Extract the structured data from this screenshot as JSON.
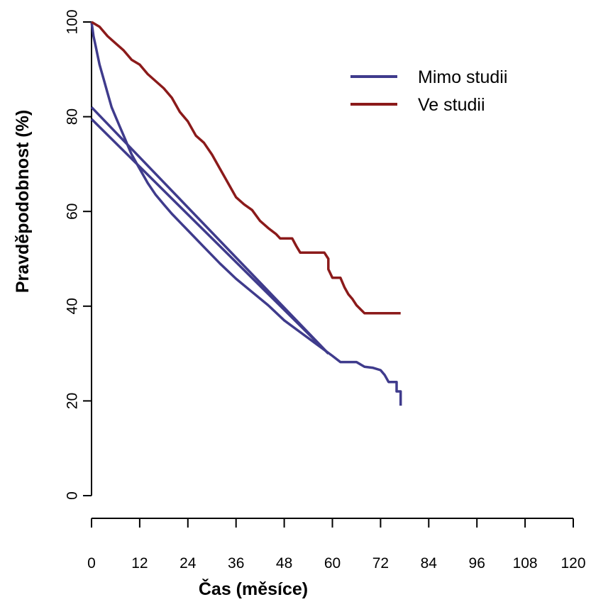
{
  "chart_data": {
    "type": "line",
    "xlabel": "Čas (měsíce)",
    "ylabel": "Pravděpodobnost (%)",
    "xlim": [
      0,
      120
    ],
    "ylim": [
      0,
      100
    ],
    "x_ticks": [
      0,
      12,
      24,
      36,
      48,
      60,
      72,
      84,
      96,
      108,
      120
    ],
    "y_ticks": [
      0,
      20,
      40,
      60,
      80,
      100
    ],
    "grid": false,
    "legend_position": "top-right",
    "series": [
      {
        "name": "Mimo studii",
        "color": "#3f3b8c",
        "points": [
          [
            0,
            100
          ],
          [
            0.5,
            97
          ],
          [
            1,
            95
          ],
          [
            1.5,
            93
          ],
          [
            2,
            91
          ],
          [
            3,
            88
          ],
          [
            4,
            85
          ],
          [
            5,
            82
          ],
          [
            6,
            80
          ],
          [
            7,
            78
          ],
          [
            8,
            76
          ],
          [
            9,
            74
          ],
          [
            10,
            72
          ],
          [
            12,
            69
          ],
          [
            14,
            66
          ],
          [
            16,
            63.5
          ],
          [
            18,
            61.5
          ],
          [
            20,
            59.5
          ],
          [
            24,
            56
          ],
          [
            28,
            52.5
          ],
          [
            32,
            49
          ],
          [
            36,
            45.8
          ],
          [
            40,
            43
          ],
          [
            44,
            40.2
          ],
          [
            48,
            37
          ],
          [
            52,
            34.5
          ],
          [
            56,
            32
          ],
          [
            60,
            29.5
          ],
          [
            62,
            28.2
          ],
          [
            66,
            28.2
          ],
          [
            68,
            27.2
          ],
          [
            70,
            27
          ],
          [
            72,
            26.5
          ],
          [
            73,
            25.5
          ],
          [
            74,
            24
          ],
          [
            76,
            24
          ],
          [
            76,
            22
          ],
          [
            77,
            22
          ],
          [
            77,
            19
          ]
        ]
      },
      {
        "name": "Ve studii",
        "color": "#8b1a1a",
        "points": [
          [
            0,
            100
          ],
          [
            2,
            99
          ],
          [
            4,
            97
          ],
          [
            6,
            95.5
          ],
          [
            8,
            94
          ],
          [
            10,
            92
          ],
          [
            12,
            91
          ],
          [
            14,
            89
          ],
          [
            16,
            87.5
          ],
          [
            18,
            86
          ],
          [
            20,
            84
          ],
          [
            22,
            81
          ],
          [
            24,
            79
          ],
          [
            26,
            76
          ],
          [
            28,
            74.5
          ],
          [
            30,
            72
          ],
          [
            32,
            69
          ],
          [
            34,
            66
          ],
          [
            36,
            63
          ],
          [
            38,
            61.5
          ],
          [
            40,
            60.3
          ],
          [
            42,
            58
          ],
          [
            44,
            56.5
          ],
          [
            46,
            55.2
          ],
          [
            47,
            54.3
          ],
          [
            50,
            54.3
          ],
          [
            51,
            52.7
          ],
          [
            52,
            51.3
          ],
          [
            58,
            51.3
          ],
          [
            59,
            50
          ],
          [
            59,
            47.8
          ],
          [
            60,
            46
          ],
          [
            62,
            46
          ],
          [
            63,
            44
          ],
          [
            64,
            42.5
          ],
          [
            65,
            41.5
          ],
          [
            66,
            40.2
          ],
          [
            68,
            38.5
          ],
          [
            77,
            38.5
          ]
        ]
      },
      {
        "name": "",
        "color": "#3f3b8c",
        "points": [
          [
            0,
            82
          ],
          [
            59,
            30
          ]
        ]
      },
      {
        "name": "",
        "color": "#3f3b8c",
        "points": [
          [
            0,
            79.5
          ],
          [
            59,
            30
          ]
        ]
      }
    ],
    "legend": [
      {
        "label": "Mimo studii",
        "color": "#3f3b8c"
      },
      {
        "label": "Ve studii",
        "color": "#8b1a1a"
      }
    ]
  }
}
